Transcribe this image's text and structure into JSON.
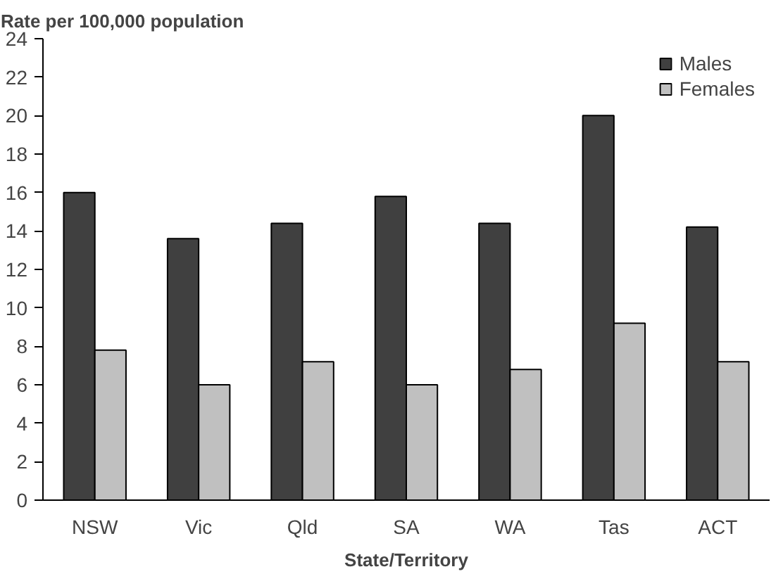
{
  "chart_data": {
    "type": "bar",
    "title": "Rate per 100,000 population",
    "xlabel": "State/Territory",
    "categories": [
      "NSW",
      "Vic",
      "Qld",
      "SA",
      "WA",
      "Tas",
      "ACT"
    ],
    "series": [
      {
        "name": "Males",
        "color": "#404040",
        "values": [
          16,
          13.6,
          14.4,
          15.8,
          14.4,
          20,
          14.2
        ]
      },
      {
        "name": "Females",
        "color": "#c0c0c0",
        "values": [
          7.8,
          6,
          7.2,
          6,
          6.8,
          9.2,
          7.2
        ]
      }
    ],
    "ylim": [
      0,
      24
    ],
    "yticks": [
      0,
      2,
      4,
      6,
      8,
      10,
      12,
      14,
      16,
      18,
      20,
      22,
      24
    ],
    "grid": false,
    "legend": "top right"
  }
}
